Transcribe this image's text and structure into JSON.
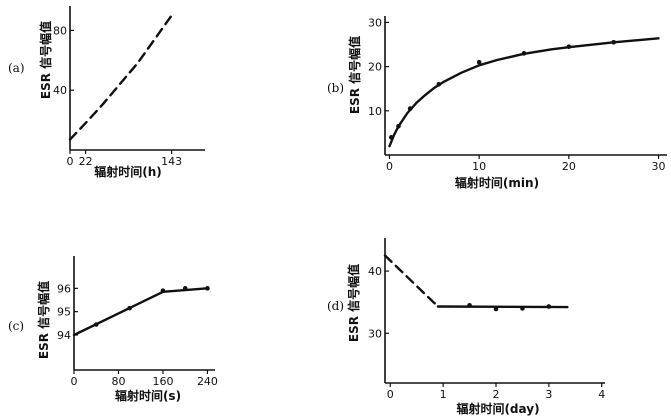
{
  "chart_data": [
    {
      "type": "line",
      "panel_label": "(a)",
      "ylabel": "ESR 信号幅值",
      "xlabel": "辐射时间(h)",
      "x_ticks": [
        "0",
        "22",
        "143"
      ],
      "y_ticks": [
        "40",
        "80"
      ],
      "xlim": [
        0,
        190
      ],
      "ylim": [
        0,
        95
      ],
      "series": [
        {
          "style": "dashed",
          "x": [
            0,
            22,
            45,
            95,
            143
          ],
          "y": [
            7,
            18,
            30,
            58,
            90
          ]
        }
      ]
    },
    {
      "type": "line",
      "panel_label": "(b)",
      "ylabel": "ESR 信号幅值",
      "xlabel": "辐射时间(min)",
      "x_ticks": [
        "0",
        "10",
        "20",
        "30"
      ],
      "y_ticks": [
        "10",
        "20",
        "30"
      ],
      "xlim": [
        -0.5,
        30.5
      ],
      "ylim": [
        0,
        31
      ],
      "series": [
        {
          "style": "solid",
          "x": [
            0,
            0.5,
            1,
            2,
            3,
            4,
            5,
            6,
            8,
            10,
            12,
            15,
            18,
            20,
            25,
            30
          ],
          "y": [
            2,
            4.5,
            6.5,
            9.5,
            11.8,
            13.6,
            15.2,
            16.5,
            18.6,
            20.3,
            21.5,
            22.9,
            23.9,
            24.4,
            25.5,
            26.4
          ]
        },
        {
          "style": "markers",
          "x": [
            0.2,
            1,
            2.3,
            5.5,
            10,
            15,
            20,
            25
          ],
          "y": [
            4,
            6.5,
            10.5,
            16,
            21,
            23,
            24.5,
            25.5
          ]
        }
      ]
    },
    {
      "type": "line",
      "panel_label": "(c)",
      "ylabel": "ESR 信号幅值",
      "xlabel": "辐射时间(s)",
      "x_ticks": [
        "0",
        "80",
        "160",
        "240"
      ],
      "y_ticks": [
        "94",
        "95",
        "96"
      ],
      "xlim": [
        0,
        250
      ],
      "ylim": [
        92.5,
        97.3
      ],
      "series": [
        {
          "style": "solid",
          "x": [
            0,
            160,
            240
          ],
          "y": [
            94,
            95.85,
            96
          ]
        },
        {
          "style": "markers",
          "x": [
            40,
            100,
            160,
            200,
            240
          ],
          "y": [
            94.45,
            95.15,
            95.9,
            96,
            96
          ]
        }
      ]
    },
    {
      "type": "line",
      "panel_label": "(d)",
      "ylabel": "ESR 信号幅值",
      "xlabel": "辐射时间(day)",
      "x_ticks": [
        "0",
        "1",
        "2",
        "3",
        "4"
      ],
      "y_ticks": [
        "30",
        "40"
      ],
      "xlim": [
        -0.1,
        4.1
      ],
      "ylim": [
        22,
        45
      ],
      "series": [
        {
          "style": "dashed",
          "x": [
            -0.1,
            0.9
          ],
          "y": [
            42.5,
            34.3
          ]
        },
        {
          "style": "solid",
          "x": [
            0.9,
            3.35
          ],
          "y": [
            34.3,
            34.2
          ]
        },
        {
          "style": "markers",
          "x": [
            1.5,
            2,
            2.5,
            3
          ],
          "y": [
            34.5,
            33.9,
            34,
            34.3
          ]
        }
      ]
    }
  ]
}
